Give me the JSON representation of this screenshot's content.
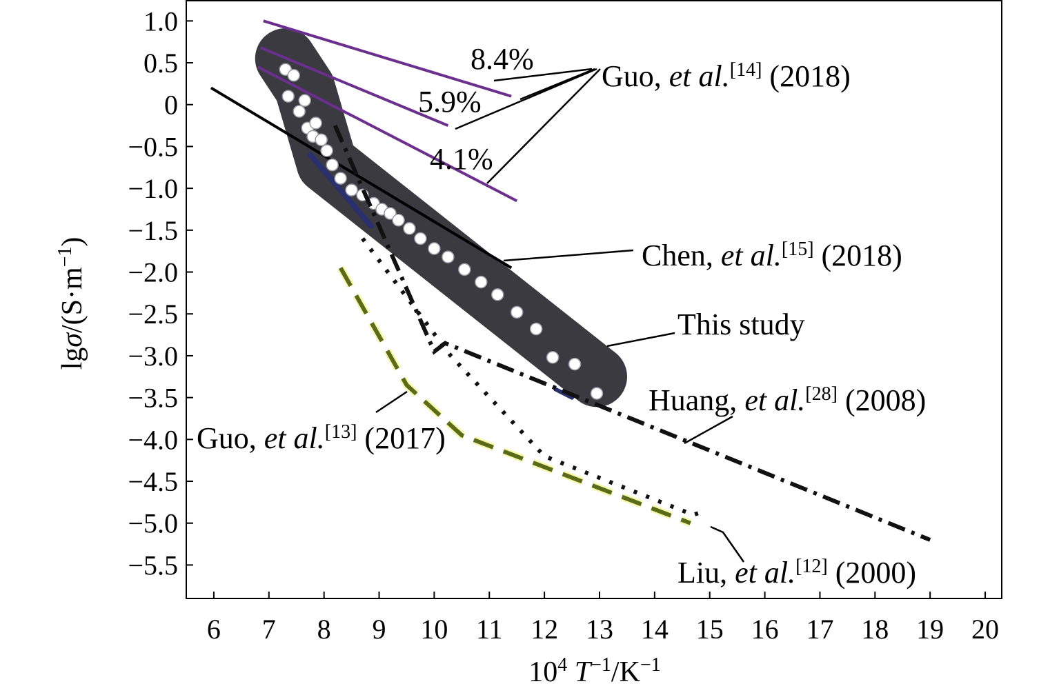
{
  "chart_data": {
    "type": "line",
    "xlabel": {
      "main": "10",
      "sup1": "4",
      "var": "T",
      "sup2": "−1",
      "unit": "/K",
      "sup3": "−1"
    },
    "ylabel": {
      "pre": "lg",
      "var": "σ",
      "unit": "/(S·m",
      "sup": "−1",
      "post": ")"
    },
    "xlim": [
      5.5,
      20.3
    ],
    "ylim": [
      -5.9,
      1.25
    ],
    "xticks": [
      6,
      7,
      8,
      9,
      10,
      11,
      12,
      13,
      14,
      15,
      16,
      17,
      18,
      19,
      20
    ],
    "yticks": [
      1.0,
      0.5,
      0,
      -0.5,
      -1.0,
      -1.5,
      -2.0,
      -2.5,
      -3.0,
      -3.5,
      -4.0,
      -4.5,
      -5.0,
      -5.5
    ],
    "ytick_labels": [
      "1.0",
      "0.5",
      "0",
      "−0.5",
      "−1.0",
      "−1.5",
      "−2.0",
      "−2.5",
      "−3.0",
      "−3.5",
      "−4.0",
      "−4.5",
      "−5.0",
      "−5.5"
    ],
    "grid": false,
    "band": {
      "color": "#3a3a40",
      "path": [
        [
          7.3,
          0.55
        ],
        [
          7.65,
          0.2
        ],
        [
          8.05,
          -0.7
        ],
        [
          12.95,
          -3.25
        ]
      ]
    },
    "series": [
      {
        "name": "8.4%",
        "color": "#6b2f8e",
        "style": "solid",
        "x": [
          6.9,
          11.4
        ],
        "y": [
          1.0,
          0.1
        ]
      },
      {
        "name": "5.9%",
        "color": "#6b2f8e",
        "style": "solid",
        "x": [
          6.85,
          10.25
        ],
        "y": [
          0.68,
          -0.25
        ]
      },
      {
        "name": "4.1%",
        "color": "#6b2f8e",
        "style": "solid",
        "x": [
          6.8,
          11.5
        ],
        "y": [
          0.45,
          -1.15
        ]
      },
      {
        "name": "Chen, et al. (2018)",
        "color": "#000000",
        "style": "solid",
        "x": [
          5.95,
          11.4
        ],
        "y": [
          0.2,
          -1.95
        ]
      },
      {
        "name": "This study",
        "color": "#ffffff",
        "style": "markers",
        "x": [
          7.3,
          7.35,
          7.45,
          7.55,
          7.65,
          7.7,
          7.8,
          7.85,
          7.95,
          8.05,
          8.15,
          8.3,
          8.5,
          8.7,
          8.9,
          9.05,
          9.2,
          9.35,
          9.55,
          9.75,
          10.0,
          10.25,
          10.55,
          10.85,
          11.15,
          11.5,
          11.85,
          12.15,
          12.55,
          12.95
        ],
        "y": [
          0.42,
          0.1,
          0.35,
          -0.08,
          0.05,
          -0.28,
          -0.38,
          -0.22,
          -0.42,
          -0.55,
          -0.72,
          -0.88,
          -1.02,
          -1.08,
          -1.18,
          -1.25,
          -1.3,
          -1.38,
          -1.48,
          -1.6,
          -1.72,
          -1.82,
          -1.97,
          -2.12,
          -2.27,
          -2.48,
          -2.68,
          -3.02,
          -3.1,
          -3.45
        ]
      },
      {
        "name": "Huang, et al. (2008)",
        "color": "#111111",
        "style": "dashdot",
        "x": [
          8.2,
          10.0,
          10.2,
          19.0
        ],
        "y": [
          -0.25,
          -2.95,
          -2.85,
          -5.2
        ]
      },
      {
        "name": "Liu, et al. (2000)",
        "color": "#111111",
        "style": "dotted",
        "x": [
          8.7,
          10.3,
          12.0,
          14.7,
          14.95
        ],
        "y": [
          -1.6,
          -3.0,
          -4.2,
          -4.9,
          -4.85
        ]
      },
      {
        "name": "Guo, et al. (2017)",
        "color": "#5a6b1a",
        "style": "dashed",
        "x": [
          8.3,
          9.5,
          10.5,
          14.65
        ],
        "y": [
          -1.95,
          -3.35,
          -3.95,
          -5.0
        ]
      }
    ],
    "annotations": [
      {
        "id": "pct84",
        "text": "8.4%"
      },
      {
        "id": "pct59",
        "text": "5.9%"
      },
      {
        "id": "pct41",
        "text": "4.1%"
      },
      {
        "id": "guo14",
        "author": "Guo, ",
        "etal": "et al.",
        "ref": "[14]",
        "year": " (2018)"
      },
      {
        "id": "chen15",
        "author": "Chen, ",
        "etal": "et al.",
        "ref": "[15]",
        "year": " (2018)"
      },
      {
        "id": "thisstudy",
        "author": "This study",
        "etal": "",
        "ref": "",
        "year": ""
      },
      {
        "id": "huang28",
        "author": "Huang, ",
        "etal": "et al.",
        "ref": "[28]",
        "year": " (2008)"
      },
      {
        "id": "guo13",
        "author": "Guo, ",
        "etal": "et al.",
        "ref": "[13]",
        "year": " (2017)"
      },
      {
        "id": "liu12",
        "author": "Liu, ",
        "etal": "et al.",
        "ref": "[12]",
        "year": " (2000)"
      }
    ]
  }
}
